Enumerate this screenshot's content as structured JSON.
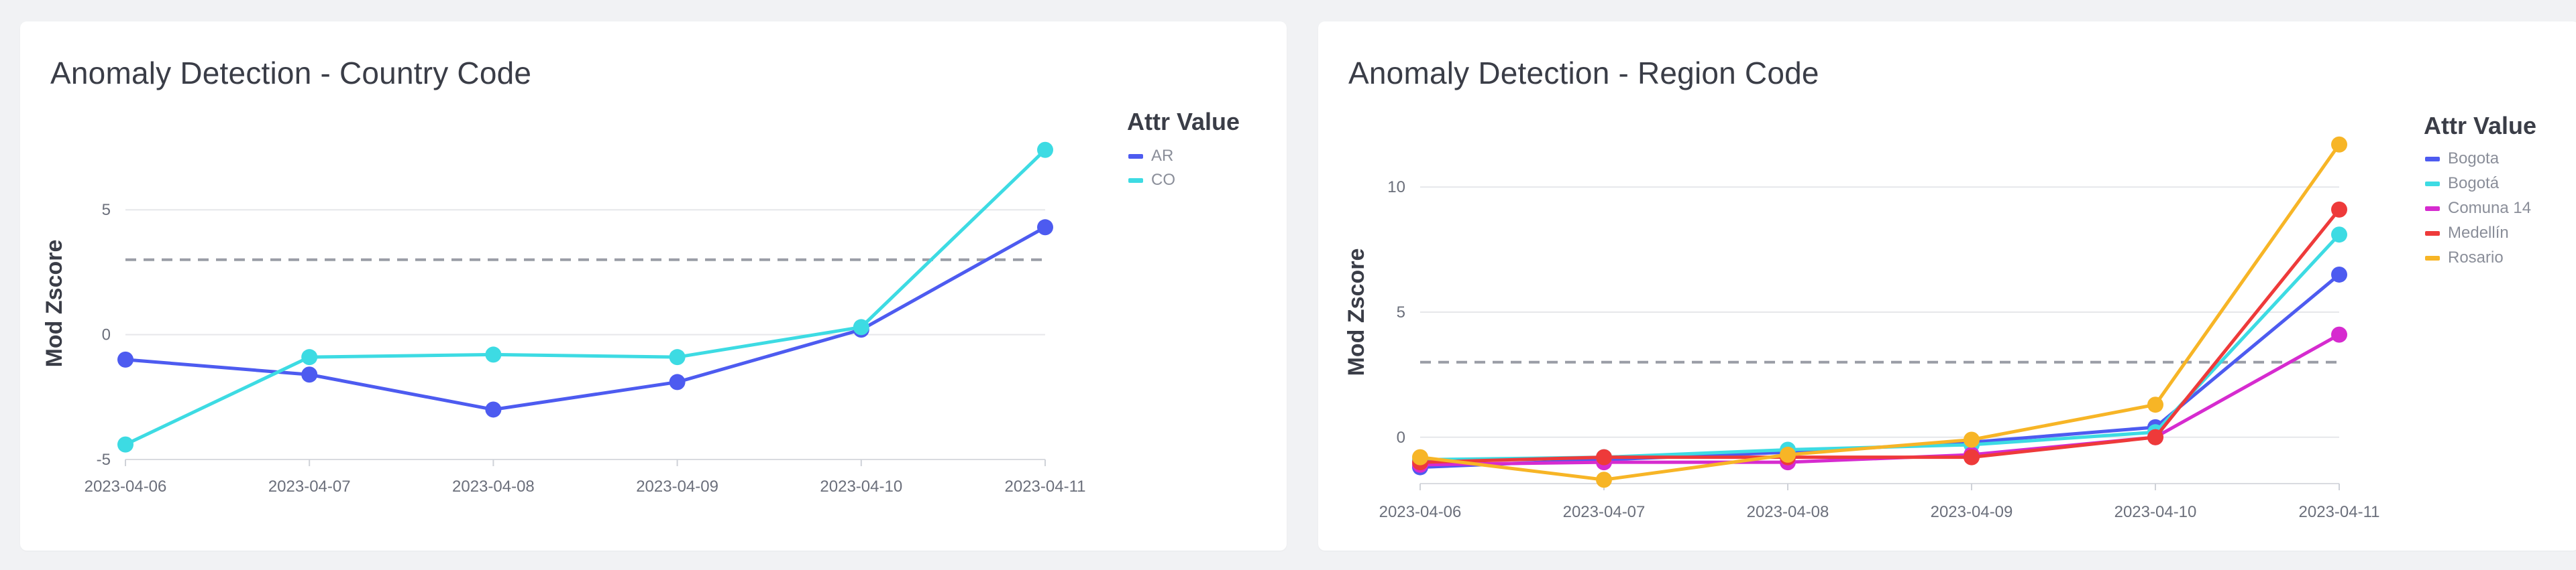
{
  "chart_data": [
    {
      "type": "line",
      "title": "Anomaly Detection - Country Code",
      "xlabel": "",
      "ylabel": "Mod Zscore",
      "categories": [
        "2023-04-06",
        "2023-04-07",
        "2023-04-08",
        "2023-04-09",
        "2023-04-10",
        "2023-04-11"
      ],
      "yticks": [
        -5,
        0,
        5
      ],
      "ylim": [
        -5,
        7.5
      ],
      "threshold": 3,
      "grid": true,
      "legend": {
        "title": "Attr Value",
        "position": "right"
      },
      "series": [
        {
          "name": "AR",
          "color": "#4d5bf0",
          "values": [
            -1.0,
            -1.6,
            -3.0,
            -1.9,
            0.2,
            4.3
          ]
        },
        {
          "name": "CO",
          "color": "#3ddbe3",
          "values": [
            -4.4,
            -0.9,
            -0.8,
            -0.9,
            0.3,
            7.4
          ]
        }
      ]
    },
    {
      "type": "line",
      "title": "Anomaly Detection - Region Code",
      "xlabel": "",
      "ylabel": "Mod Zscore",
      "categories": [
        "2023-04-06",
        "2023-04-07",
        "2023-04-08",
        "2023-04-09",
        "2023-04-10",
        "2023-04-11"
      ],
      "yticks": [
        0,
        5,
        10
      ],
      "ylim": [
        -1.8,
        11.8
      ],
      "threshold": 3,
      "grid": true,
      "legend": {
        "title": "Attr Value",
        "position": "right"
      },
      "series": [
        {
          "name": "Bogota",
          "color": "#4d5bf0",
          "values": [
            -1.2,
            -0.9,
            -0.6,
            -0.2,
            0.4,
            6.5
          ]
        },
        {
          "name": "Bogotá",
          "color": "#3ddbe3",
          "values": [
            -0.9,
            -0.8,
            -0.5,
            -0.3,
            0.2,
            8.1
          ]
        },
        {
          "name": "Comuna 14",
          "color": "#d62bcf",
          "values": [
            -1.1,
            -1.0,
            -1.0,
            -0.7,
            0.0,
            4.1
          ]
        },
        {
          "name": "Medellín",
          "color": "#ee3a3a",
          "values": [
            -1.0,
            -0.8,
            -0.8,
            -0.8,
            0.0,
            9.1
          ]
        },
        {
          "name": "Rosario",
          "color": "#f7b526",
          "values": [
            -0.8,
            -1.7,
            -0.7,
            -0.1,
            1.3,
            11.7
          ]
        }
      ]
    }
  ]
}
